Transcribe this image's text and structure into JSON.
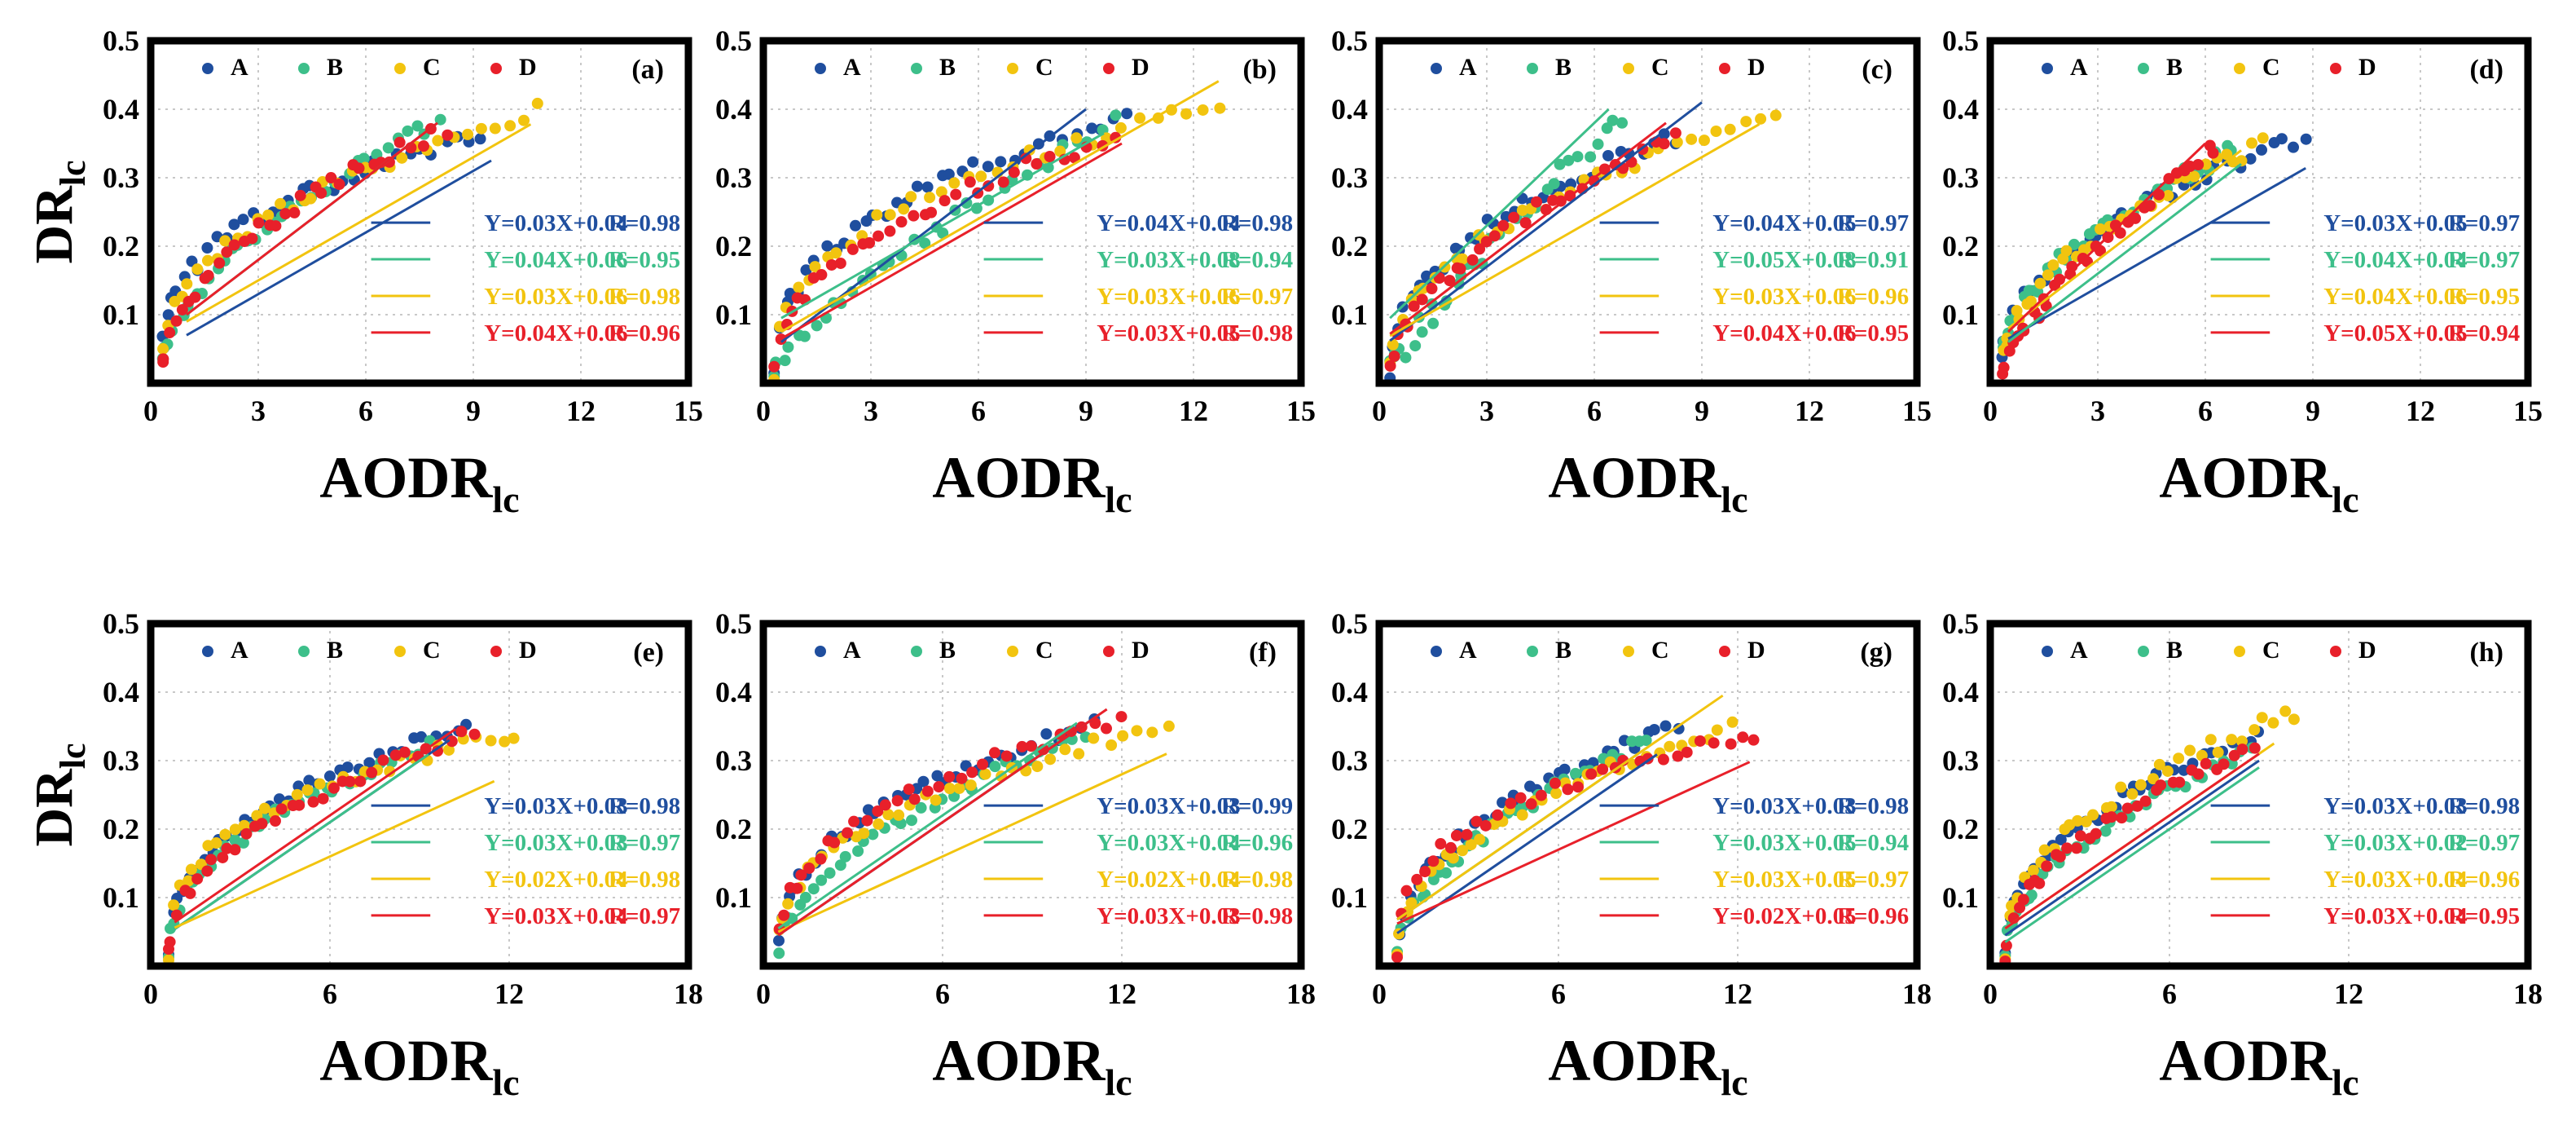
{
  "colors": {
    "A": "#1f4e9e",
    "B": "#3dbf8a",
    "C": "#f2c40f",
    "D": "#e8202a"
  },
  "chart_data": [
    {
      "type": "scatter",
      "label": "(a)",
      "xlabel": "AODR",
      "xlabel_sub": "lc",
      "ylabel": "DR",
      "ylabel_sub": "lc",
      "xlim": [
        0,
        15
      ],
      "ylim": [
        0,
        0.5
      ],
      "xticks": [
        "0",
        "3",
        "6",
        "9",
        "12",
        "15"
      ],
      "yticks": [
        "0.1",
        "0.2",
        "0.3",
        "0.4",
        "0.5"
      ],
      "legend": [
        "A",
        "B",
        "C",
        "D"
      ],
      "series": [
        {
          "name": "A",
          "equation": "Y=0.03X+0.04",
          "r": "R=0.98",
          "slope": 0.03,
          "intercept": 0.04,
          "fit_x": [
            1,
            9.5
          ],
          "x_range": [
            0.3,
            9.2
          ],
          "y_max": 0.36,
          "k": 0.35,
          "jitter": 0.012
        },
        {
          "name": "B",
          "equation": "Y=0.04X+0.06",
          "r": "R=0.95",
          "slope": 0.04,
          "intercept": 0.06,
          "fit_x": [
            1,
            8
          ],
          "x_range": [
            0.3,
            8.0
          ],
          "y_max": 0.38,
          "k": 0.55,
          "jitter": 0.012
        },
        {
          "name": "C",
          "equation": "Y=0.03X+0.06",
          "r": "R=0.98",
          "slope": 0.03,
          "intercept": 0.06,
          "fit_x": [
            1,
            10.6
          ],
          "x_range": [
            0.3,
            10.8
          ],
          "y_max": 0.4,
          "k": 0.42,
          "jitter": 0.012
        },
        {
          "name": "D",
          "equation": "Y=0.04X+0.06",
          "r": "R=0.96",
          "slope": 0.04,
          "intercept": 0.06,
          "fit_x": [
            1,
            8
          ],
          "x_range": [
            0.3,
            8.2
          ],
          "y_max": 0.37,
          "k": 0.5,
          "jitter": 0.012
        }
      ]
    },
    {
      "type": "scatter",
      "label": "(b)",
      "xlabel": "AODR",
      "xlabel_sub": "lc",
      "ylabel": "DR",
      "ylabel_sub": "lc",
      "xlim": [
        0,
        15
      ],
      "ylim": [
        0,
        0.5
      ],
      "xticks": [
        "0",
        "3",
        "6",
        "9",
        "12",
        "15"
      ],
      "yticks": [
        "0.1",
        "0.2",
        "0.3",
        "0.4",
        "0.5"
      ],
      "legend": [
        "A",
        "B",
        "C",
        "D"
      ],
      "series": [
        {
          "name": "A",
          "equation": "Y=0.04X+0.04",
          "r": "R=0.98",
          "slope": 0.04,
          "intercept": 0.04,
          "fit_x": [
            0.5,
            9
          ],
          "x_range": [
            0.3,
            10.2
          ],
          "y_max": 0.39,
          "k": 0.4,
          "jitter": 0.012
        },
        {
          "name": "B",
          "equation": "Y=0.03X+0.08",
          "r": "R=0.94",
          "slope": 0.03,
          "intercept": 0.08,
          "fit_x": [
            0.5,
            9.5
          ],
          "x_range": [
            0.3,
            9.8
          ],
          "y_max": 0.38,
          "k": 0.75,
          "jitter": 0.012
        },
        {
          "name": "C",
          "equation": "Y=0.03X+0.06",
          "r": "R=0.97",
          "slope": 0.03,
          "intercept": 0.06,
          "fit_x": [
            0.5,
            12.7
          ],
          "x_range": [
            0.3,
            12.8
          ],
          "y_max": 0.41,
          "k": 0.4,
          "jitter": 0.012
        },
        {
          "name": "D",
          "equation": "Y=0.03X+0.05",
          "r": "R=0.98",
          "slope": 0.03,
          "intercept": 0.05,
          "fit_x": [
            0.5,
            10
          ],
          "x_range": [
            0.3,
            9.8
          ],
          "y_max": 0.36,
          "k": 0.45,
          "jitter": 0.012
        }
      ]
    },
    {
      "type": "scatter",
      "label": "(c)",
      "xlabel": "AODR",
      "xlabel_sub": "lc",
      "ylabel": "DR",
      "ylabel_sub": "lc",
      "xlim": [
        0,
        15
      ],
      "ylim": [
        0,
        0.5
      ],
      "xticks": [
        "0",
        "3",
        "6",
        "9",
        "12",
        "15"
      ],
      "yticks": [
        "0.1",
        "0.2",
        "0.3",
        "0.4",
        "0.5"
      ],
      "legend": [
        "A",
        "B",
        "C",
        "D"
      ],
      "series": [
        {
          "name": "A",
          "equation": "Y=0.04X+0.05",
          "r": "R=0.97",
          "slope": 0.04,
          "intercept": 0.05,
          "fit_x": [
            0.3,
            9
          ],
          "x_range": [
            0.3,
            8.2
          ],
          "y_max": 0.36,
          "k": 0.45,
          "jitter": 0.012
        },
        {
          "name": "B",
          "equation": "Y=0.05X+0.08",
          "r": "R=0.91",
          "slope": 0.05,
          "intercept": 0.08,
          "fit_x": [
            0.3,
            6.4
          ],
          "x_range": [
            0.3,
            6.8
          ],
          "y_max": 0.39,
          "k": 0.85,
          "jitter": 0.018
        },
        {
          "name": "C",
          "equation": "Y=0.03X+0.06",
          "r": "R=0.96",
          "slope": 0.03,
          "intercept": 0.06,
          "fit_x": [
            0.3,
            10.6
          ],
          "x_range": [
            0.3,
            11.0
          ],
          "y_max": 0.39,
          "k": 0.45,
          "jitter": 0.012
        },
        {
          "name": "D",
          "equation": "Y=0.04X+0.06",
          "r": "R=0.95",
          "slope": 0.04,
          "intercept": 0.06,
          "fit_x": [
            0.3,
            8
          ],
          "x_range": [
            0.3,
            8.3
          ],
          "y_max": 0.36,
          "k": 0.55,
          "jitter": 0.012
        }
      ]
    },
    {
      "type": "scatter",
      "label": "(d)",
      "xlabel": "AODR",
      "xlabel_sub": "lc",
      "ylabel": "DR",
      "ylabel_sub": "lc",
      "xlim": [
        0,
        15
      ],
      "ylim": [
        0,
        0.5
      ],
      "xticks": [
        "0",
        "3",
        "6",
        "9",
        "12",
        "15"
      ],
      "yticks": [
        "0.1",
        "0.2",
        "0.3",
        "0.4",
        "0.5"
      ],
      "legend": [
        "A",
        "B",
        "C",
        "D"
      ],
      "series": [
        {
          "name": "A",
          "equation": "Y=0.03X+0.05",
          "r": "R=0.97",
          "slope": 0.03,
          "intercept": 0.05,
          "fit_x": [
            0.5,
            8.8
          ],
          "x_range": [
            0.3,
            8.8
          ],
          "y_max": 0.36,
          "k": 0.45,
          "jitter": 0.012
        },
        {
          "name": "B",
          "equation": "Y=0.04X+0.04",
          "r": "R=0.97",
          "slope": 0.04,
          "intercept": 0.04,
          "fit_x": [
            0.5,
            7
          ],
          "x_range": [
            0.3,
            6.8
          ],
          "y_max": 0.34,
          "k": 0.5,
          "jitter": 0.012
        },
        {
          "name": "C",
          "equation": "Y=0.04X+0.06",
          "r": "R=0.95",
          "slope": 0.04,
          "intercept": 0.06,
          "fit_x": [
            0.5,
            7
          ],
          "x_range": [
            0.3,
            7.6
          ],
          "y_max": 0.35,
          "k": 0.5,
          "jitter": 0.012
        },
        {
          "name": "D",
          "equation": "Y=0.05X+0.05",
          "r": "R=0.94",
          "slope": 0.05,
          "intercept": 0.05,
          "fit_x": [
            0.5,
            6
          ],
          "x_range": [
            0.3,
            6.3
          ],
          "y_max": 0.35,
          "k": 0.75,
          "jitter": 0.012
        }
      ]
    },
    {
      "type": "scatter",
      "label": "(e)",
      "xlabel": "AODR",
      "xlabel_sub": "lc",
      "ylabel": "DR",
      "ylabel_sub": "lc",
      "xlim": [
        0,
        18
      ],
      "ylim": [
        0,
        0.5
      ],
      "xticks": [
        "0",
        "6",
        "12",
        "18"
      ],
      "yticks": [
        "0.1",
        "0.2",
        "0.3",
        "0.4",
        "0.5"
      ],
      "legend": [
        "A",
        "B",
        "C",
        "D"
      ],
      "series": [
        {
          "name": "A",
          "equation": "Y=0.03X+0.03",
          "r": "R=0.98",
          "slope": 0.03,
          "intercept": 0.03,
          "fit_x": [
            0.8,
            10
          ],
          "x_range": [
            0.6,
            10.6
          ],
          "y_max": 0.35,
          "k": 0.4,
          "jitter": 0.01
        },
        {
          "name": "B",
          "equation": "Y=0.03X+0.03",
          "r": "R=0.97",
          "slope": 0.03,
          "intercept": 0.03,
          "fit_x": [
            0.8,
            9.3
          ],
          "x_range": [
            0.6,
            9.3
          ],
          "y_max": 0.32,
          "k": 0.45,
          "jitter": 0.01
        },
        {
          "name": "C",
          "equation": "Y=0.02X+0.04",
          "r": "R=0.98",
          "slope": 0.02,
          "intercept": 0.04,
          "fit_x": [
            0.8,
            11.5
          ],
          "x_range": [
            0.6,
            12.2
          ],
          "y_max": 0.34,
          "k": 0.35,
          "jitter": 0.01
        },
        {
          "name": "D",
          "equation": "Y=0.03X+0.04",
          "r": "R=0.97",
          "slope": 0.03,
          "intercept": 0.04,
          "fit_x": [
            0.8,
            10.2
          ],
          "x_range": [
            0.6,
            10.8
          ],
          "y_max": 0.34,
          "k": 0.45,
          "jitter": 0.01
        }
      ]
    },
    {
      "type": "scatter",
      "label": "(f)",
      "xlabel": "AODR",
      "xlabel_sub": "lc",
      "ylabel": "DR",
      "ylabel_sub": "lc",
      "xlim": [
        0,
        18
      ],
      "ylim": [
        0,
        0.5
      ],
      "xticks": [
        "0",
        "6",
        "12",
        "18"
      ],
      "yticks": [
        "0.1",
        "0.2",
        "0.3",
        "0.4",
        "0.5"
      ],
      "legend": [
        "A",
        "B",
        "C",
        "D"
      ],
      "series": [
        {
          "name": "A",
          "equation": "Y=0.03X+0.03",
          "r": "R=0.99",
          "slope": 0.03,
          "intercept": 0.03,
          "fit_x": [
            0.5,
            11
          ],
          "x_range": [
            0.5,
            11.0
          ],
          "y_max": 0.35,
          "k": 0.4,
          "jitter": 0.01
        },
        {
          "name": "B",
          "equation": "Y=0.03X+0.04",
          "r": "R=0.96",
          "slope": 0.03,
          "intercept": 0.04,
          "fit_x": [
            0.5,
            10.5
          ],
          "x_range": [
            0.5,
            10.8
          ],
          "y_max": 0.34,
          "k": 0.55,
          "jitter": 0.01
        },
        {
          "name": "C",
          "equation": "Y=0.02X+0.04",
          "r": "R=0.98",
          "slope": 0.02,
          "intercept": 0.04,
          "fit_x": [
            0.5,
            13.5
          ],
          "x_range": [
            0.5,
            13.5
          ],
          "y_max": 0.35,
          "k": 0.4,
          "jitter": 0.01
        },
        {
          "name": "D",
          "equation": "Y=0.03X+0.03",
          "r": "R=0.98",
          "slope": 0.03,
          "intercept": 0.03,
          "fit_x": [
            0.5,
            11.5
          ],
          "x_range": [
            0.5,
            12.0
          ],
          "y_max": 0.36,
          "k": 0.4,
          "jitter": 0.01
        }
      ]
    },
    {
      "type": "scatter",
      "label": "(g)",
      "xlabel": "AODR",
      "xlabel_sub": "lc",
      "ylabel": "DR",
      "ylabel_sub": "lc",
      "xlim": [
        0,
        18
      ],
      "ylim": [
        0,
        0.5
      ],
      "xticks": [
        "0",
        "6",
        "12",
        "18"
      ],
      "yticks": [
        "0.1",
        "0.2",
        "0.3",
        "0.4",
        "0.5"
      ],
      "legend": [
        "A",
        "B",
        "C",
        "D"
      ],
      "series": [
        {
          "name": "A",
          "equation": "Y=0.03X+0.03",
          "r": "R=0.98",
          "slope": 0.03,
          "intercept": 0.03,
          "fit_x": [
            0.6,
            9.3
          ],
          "x_range": [
            0.6,
            10.0
          ],
          "y_max": 0.35,
          "k": 0.45,
          "jitter": 0.01
        },
        {
          "name": "B",
          "equation": "Y=0.03X+0.05",
          "r": "R=0.94",
          "slope": 0.03,
          "intercept": 0.05,
          "fit_x": [
            0.6,
            9
          ],
          "x_range": [
            0.6,
            9.0
          ],
          "y_max": 0.33,
          "k": 0.55,
          "jitter": 0.01
        },
        {
          "name": "C",
          "equation": "Y=0.03X+0.05",
          "r": "R=0.97",
          "slope": 0.03,
          "intercept": 0.05,
          "fit_x": [
            0.6,
            11.5
          ],
          "x_range": [
            0.6,
            11.8
          ],
          "y_max": 0.35,
          "k": 0.45,
          "jitter": 0.01
        },
        {
          "name": "D",
          "equation": "Y=0.02X+0.05",
          "r": "R=0.96",
          "slope": 0.02,
          "intercept": 0.05,
          "fit_x": [
            0.6,
            12.4
          ],
          "x_range": [
            0.6,
            12.6
          ],
          "y_max": 0.34,
          "k": 0.35,
          "jitter": 0.01
        }
      ]
    },
    {
      "type": "scatter",
      "label": "(h)",
      "xlabel": "AODR",
      "xlabel_sub": "lc",
      "ylabel": "DR",
      "ylabel_sub": "lc",
      "xlim": [
        0,
        18
      ],
      "ylim": [
        0,
        0.5
      ],
      "xticks": [
        "0",
        "6",
        "12",
        "18"
      ],
      "yticks": [
        "0.1",
        "0.2",
        "0.3",
        "0.4",
        "0.5"
      ],
      "legend": [
        "A",
        "B",
        "C",
        "D"
      ],
      "series": [
        {
          "name": "A",
          "equation": "Y=0.03X+0.03",
          "r": "R=0.98",
          "slope": 0.03,
          "intercept": 0.03,
          "fit_x": [
            0.5,
            9
          ],
          "x_range": [
            0.5,
            9.0
          ],
          "y_max": 0.34,
          "k": 0.45,
          "jitter": 0.01
        },
        {
          "name": "B",
          "equation": "Y=0.03X+0.02",
          "r": "R=0.97",
          "slope": 0.03,
          "intercept": 0.02,
          "fit_x": [
            0.5,
            9
          ],
          "x_range": [
            0.5,
            8.7
          ],
          "y_max": 0.31,
          "k": 0.5,
          "jitter": 0.01
        },
        {
          "name": "C",
          "equation": "Y=0.03X+0.04",
          "r": "R=0.96",
          "slope": 0.03,
          "intercept": 0.04,
          "fit_x": [
            0.5,
            9.5
          ],
          "x_range": [
            0.5,
            10.2
          ],
          "y_max": 0.37,
          "k": 0.45,
          "jitter": 0.012
        },
        {
          "name": "D",
          "equation": "Y=0.03X+0.04",
          "r": "R=0.95",
          "slope": 0.03,
          "intercept": 0.04,
          "fit_x": [
            0.5,
            9
          ],
          "x_range": [
            0.5,
            8.8
          ],
          "y_max": 0.32,
          "k": 0.5,
          "jitter": 0.01
        }
      ]
    }
  ]
}
